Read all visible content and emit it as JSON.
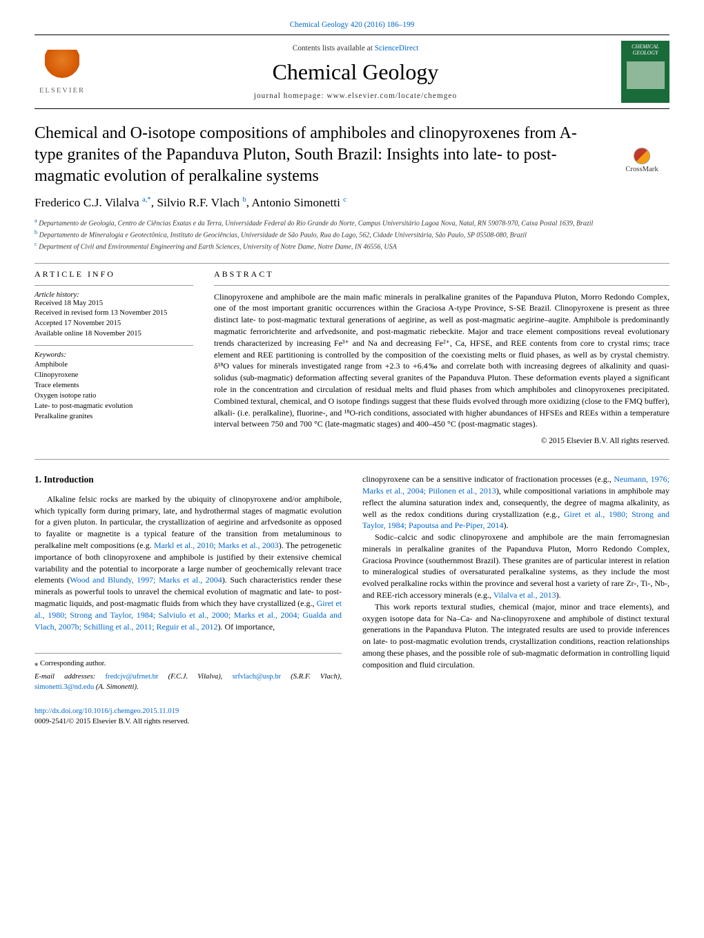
{
  "top_link": "Chemical Geology 420 (2016) 186–199",
  "header": {
    "sciencedirect_prefix": "Contents lists available at ",
    "sciencedirect_link": "ScienceDirect",
    "journal_name": "Chemical Geology",
    "homepage_prefix": "journal homepage: ",
    "homepage_url": "www.elsevier.com/locate/chemgeo",
    "elsevier_label": "ELSEVIER",
    "cover_label_1": "CHEMICAL",
    "cover_label_2": "GEOLOGY"
  },
  "crossmark_label": "CrossMark",
  "title": "Chemical and O-isotope compositions of amphiboles and clinopyroxenes from A-type granites of the Papanduva Pluton, South Brazil: Insights into late- to post-magmatic evolution of peralkaline systems",
  "authors_html": "Frederico C.J. Vilalva <sup>a,*</sup>, Silvio R.F. Vlach <sup>b</sup>, Antonio Simonetti <sup>c</sup>",
  "affiliations": [
    {
      "sup": "a",
      "text": "Departamento de Geologia, Centro de Ciências Exatas e da Terra, Universidade Federal do Rio Grande do Norte, Campus Universitário Lagoa Nova, Natal, RN 59078-970, Caixa Postal 1639, Brazil"
    },
    {
      "sup": "b",
      "text": "Departamento de Mineralogia e Geotectônica, Instituto de Geociências, Universidade de São Paulo, Rua do Lago, 562, Cidade Universitária, São Paulo, SP 05508-080, Brazil"
    },
    {
      "sup": "c",
      "text": "Department of Civil and Environmental Engineering and Earth Sciences, University of Notre Dame, Notre Dame, IN 46556, USA"
    }
  ],
  "article_info": {
    "heading": "ARTICLE INFO",
    "history_label": "Article history:",
    "history": [
      "Received 18 May 2015",
      "Received in revised form 13 November 2015",
      "Accepted 17 November 2015",
      "Available online 18 November 2015"
    ],
    "keywords_label": "Keywords:",
    "keywords": [
      "Amphibole",
      "Clinopyroxene",
      "Trace elements",
      "Oxygen isotope ratio",
      "Late- to post-magmatic evolution",
      "Peralkaline granites"
    ]
  },
  "abstract": {
    "heading": "ABSTRACT",
    "text": "Clinopyroxene and amphibole are the main mafic minerals in peralkaline granites of the Papanduva Pluton, Morro Redondo Complex, one of the most important granitic occurrences within the Graciosa A-type Province, S-SE Brazil. Clinopyroxene is present as three distinct late- to post-magmatic textural generations of aegirine, as well as post-magmatic aegirine–augite. Amphibole is predominantly magmatic ferrorichterite and arfvedsonite, and post-magmatic riebeckite. Major and trace element compositions reveal evolutionary trends characterized by increasing Fe³⁺ and Na and decreasing Fe²⁺, Ca, HFSE, and REE contents from core to crystal rims; trace element and REE partitioning is controlled by the composition of the coexisting melts or fluid phases, as well as by crystal chemistry. δ¹⁸O values for minerals investigated range from +2.3 to +6.4‰ and correlate both with increasing degrees of alkalinity and quasi-solidus (sub-magmatic) deformation affecting several granites of the Papanduva Pluton. These deformation events played a significant role in the concentration and circulation of residual melts and fluid phases from which amphiboles and clinopyroxenes precipitated. Combined textural, chemical, and O isotope findings suggest that these fluids evolved through more oxidizing (close to the FMQ buffer), alkali- (i.e. peralkaline), fluorine-, and ¹⁸O-rich conditions, associated with higher abundances of HFSEs and REEs within a temperature interval between 750 and 700 °C (late-magmatic stages) and 400–450 °C (post-magmatic stages).",
    "copyright": "© 2015 Elsevier B.V. All rights reserved."
  },
  "intro": {
    "heading": "1. Introduction",
    "left_p1": "Alkaline felsic rocks are marked by the ubiquity of clinopyroxene and/or amphibole, which typically form during primary, late, and hydrothermal stages of magmatic evolution for a given pluton. In particular, the crystallization of aegirine and arfvedsonite as opposed to fayalite or magnetite is a typical feature of the transition from metaluminous to peralkaline melt compositions (e.g. ",
    "left_ref1": "Markl et al., 2010; Marks et al., 2003",
    "left_p1b": "). The petrogenetic importance of both clinopyroxene and amphibole is justified by their extensive chemical variability and the potential to incorporate a large number of geochemically relevant trace elements (",
    "left_ref2": "Wood and Blundy, 1997; Marks et al., 2004",
    "left_p1c": "). Such characteristics render these minerals as powerful tools to unravel the chemical evolution of magmatic and late- to post-magmatic liquids, and post-magmatic fluids from which they have crystallized (e.g., ",
    "left_ref3": "Giret et al., 1980; Strong and Taylor, 1984; Salviulo et al., 2000; Marks et al., 2004; Gualda and Vlach, 2007b; Schilling et al., 2011; Reguir et al., 2012",
    "left_p1d": "). Of importance,",
    "right_p1a": "clinopyroxene can be a sensitive indicator of fractionation processes (e.g., ",
    "right_ref1": "Neumann, 1976; Marks et al., 2004; Piilonen et al., 2013",
    "right_p1b": "), while compositional variations in amphibole may reflect the alumina saturation index and, consequently, the degree of magma alkalinity, as well as the redox conditions during crystallization (e.g., ",
    "right_ref2": "Giret et al., 1980; Strong and Taylor, 1984; Papoutsa and Pe-Piper, 2014",
    "right_p1c": ").",
    "right_p2a": "Sodic–calcic and sodic clinopyroxene and amphibole are the main ferromagnesian minerals in peralkaline granites of the Papanduva Pluton, Morro Redondo Complex, Graciosa Province (southernmost Brazil). These granites are of particular interest in relation to mineralogical studies of oversaturated peralkaline systems, as they include the most evolved peralkaline rocks within the province and several host a variety of rare Zr-, Ti-, Nb-, and REE-rich accessory minerals (e.g., ",
    "right_ref3": "Vilalva et al., 2013",
    "right_p2b": ").",
    "right_p3": "This work reports textural studies, chemical (major, minor and trace elements), and oxygen isotope data for Na–Ca- and Na-clinopyroxene and amphibole of distinct textural generations in the Papanduva Pluton. The integrated results are used to provide inferences on late- to post-magmatic evolution trends, crystallization conditions, reaction relationships among these phases, and the possible role of sub-magmatic deformation in controlling liquid composition and fluid circulation."
  },
  "footer": {
    "corresponding": "⁎ Corresponding author.",
    "email_prefix": "E-mail addresses: ",
    "emails": [
      {
        "addr": "fredcjv@ufrnet.br",
        "name": " (F.C.J. Vilalva), "
      },
      {
        "addr": "srfvlach@usp.br",
        "name": " (S.R.F. Vlach), "
      },
      {
        "addr": "simonetti.3@nd.edu",
        "name": " (A. Simonetti)."
      }
    ],
    "doi": "http://dx.doi.org/10.1016/j.chemgeo.2015.11.019",
    "issn_line": "0009-2541/© 2015 Elsevier B.V. All rights reserved."
  }
}
